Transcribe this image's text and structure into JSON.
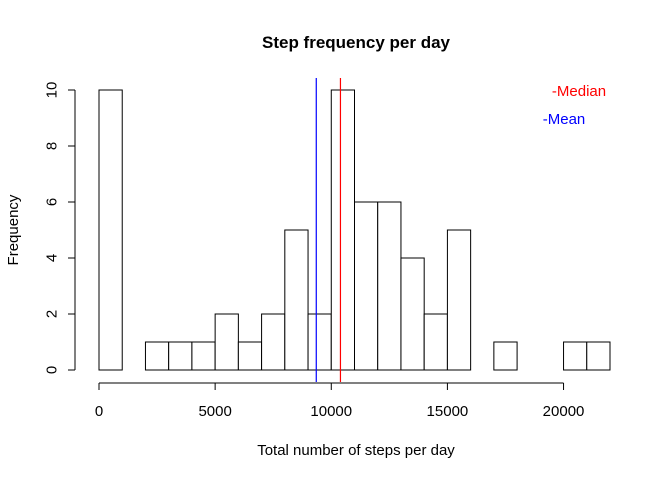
{
  "chart_data": {
    "type": "histogram",
    "title": "Step frequency per day",
    "xlabel": "Total number of steps per day",
    "ylabel": "Frequency",
    "xlim": [
      0,
      22000
    ],
    "ylim": [
      0,
      10
    ],
    "bin_width": 1000,
    "bins": [
      {
        "start": 0,
        "end": 1000,
        "count": 10
      },
      {
        "start": 1000,
        "end": 2000,
        "count": 0
      },
      {
        "start": 2000,
        "end": 3000,
        "count": 1
      },
      {
        "start": 3000,
        "end": 4000,
        "count": 1
      },
      {
        "start": 4000,
        "end": 5000,
        "count": 1
      },
      {
        "start": 5000,
        "end": 6000,
        "count": 2
      },
      {
        "start": 6000,
        "end": 7000,
        "count": 1
      },
      {
        "start": 7000,
        "end": 8000,
        "count": 2
      },
      {
        "start": 8000,
        "end": 9000,
        "count": 5
      },
      {
        "start": 9000,
        "end": 10000,
        "count": 2
      },
      {
        "start": 10000,
        "end": 11000,
        "count": 10
      },
      {
        "start": 11000,
        "end": 12000,
        "count": 6
      },
      {
        "start": 12000,
        "end": 13000,
        "count": 6
      },
      {
        "start": 13000,
        "end": 14000,
        "count": 4
      },
      {
        "start": 14000,
        "end": 15000,
        "count": 2
      },
      {
        "start": 15000,
        "end": 16000,
        "count": 5
      },
      {
        "start": 16000,
        "end": 17000,
        "count": 0
      },
      {
        "start": 17000,
        "end": 18000,
        "count": 1
      },
      {
        "start": 18000,
        "end": 19000,
        "count": 0
      },
      {
        "start": 19000,
        "end": 20000,
        "count": 0
      },
      {
        "start": 20000,
        "end": 21000,
        "count": 1
      },
      {
        "start": 21000,
        "end": 22000,
        "count": 1
      }
    ],
    "x_ticks": [
      0,
      5000,
      10000,
      15000,
      20000
    ],
    "x_tick_labels": [
      "0",
      "5000",
      "10000",
      "15000",
      "20000"
    ],
    "y_ticks": [
      0,
      2,
      4,
      6,
      8,
      10
    ],
    "y_tick_labels": [
      "0",
      "2",
      "4",
      "6",
      "8",
      "10"
    ],
    "reference_lines": [
      {
        "name": "Mean",
        "value": 9354,
        "color": "#0000ff"
      },
      {
        "name": "Median",
        "value": 10395,
        "color": "#ff0000"
      }
    ],
    "legend": {
      "placement": "top-right",
      "entries": [
        {
          "label": "-Median",
          "color": "#ff0000"
        },
        {
          "label": "-Mean",
          "color": "#0000ff"
        }
      ]
    },
    "grid": false,
    "bar_fill": "#ffffff",
    "bar_stroke": "#000000"
  }
}
